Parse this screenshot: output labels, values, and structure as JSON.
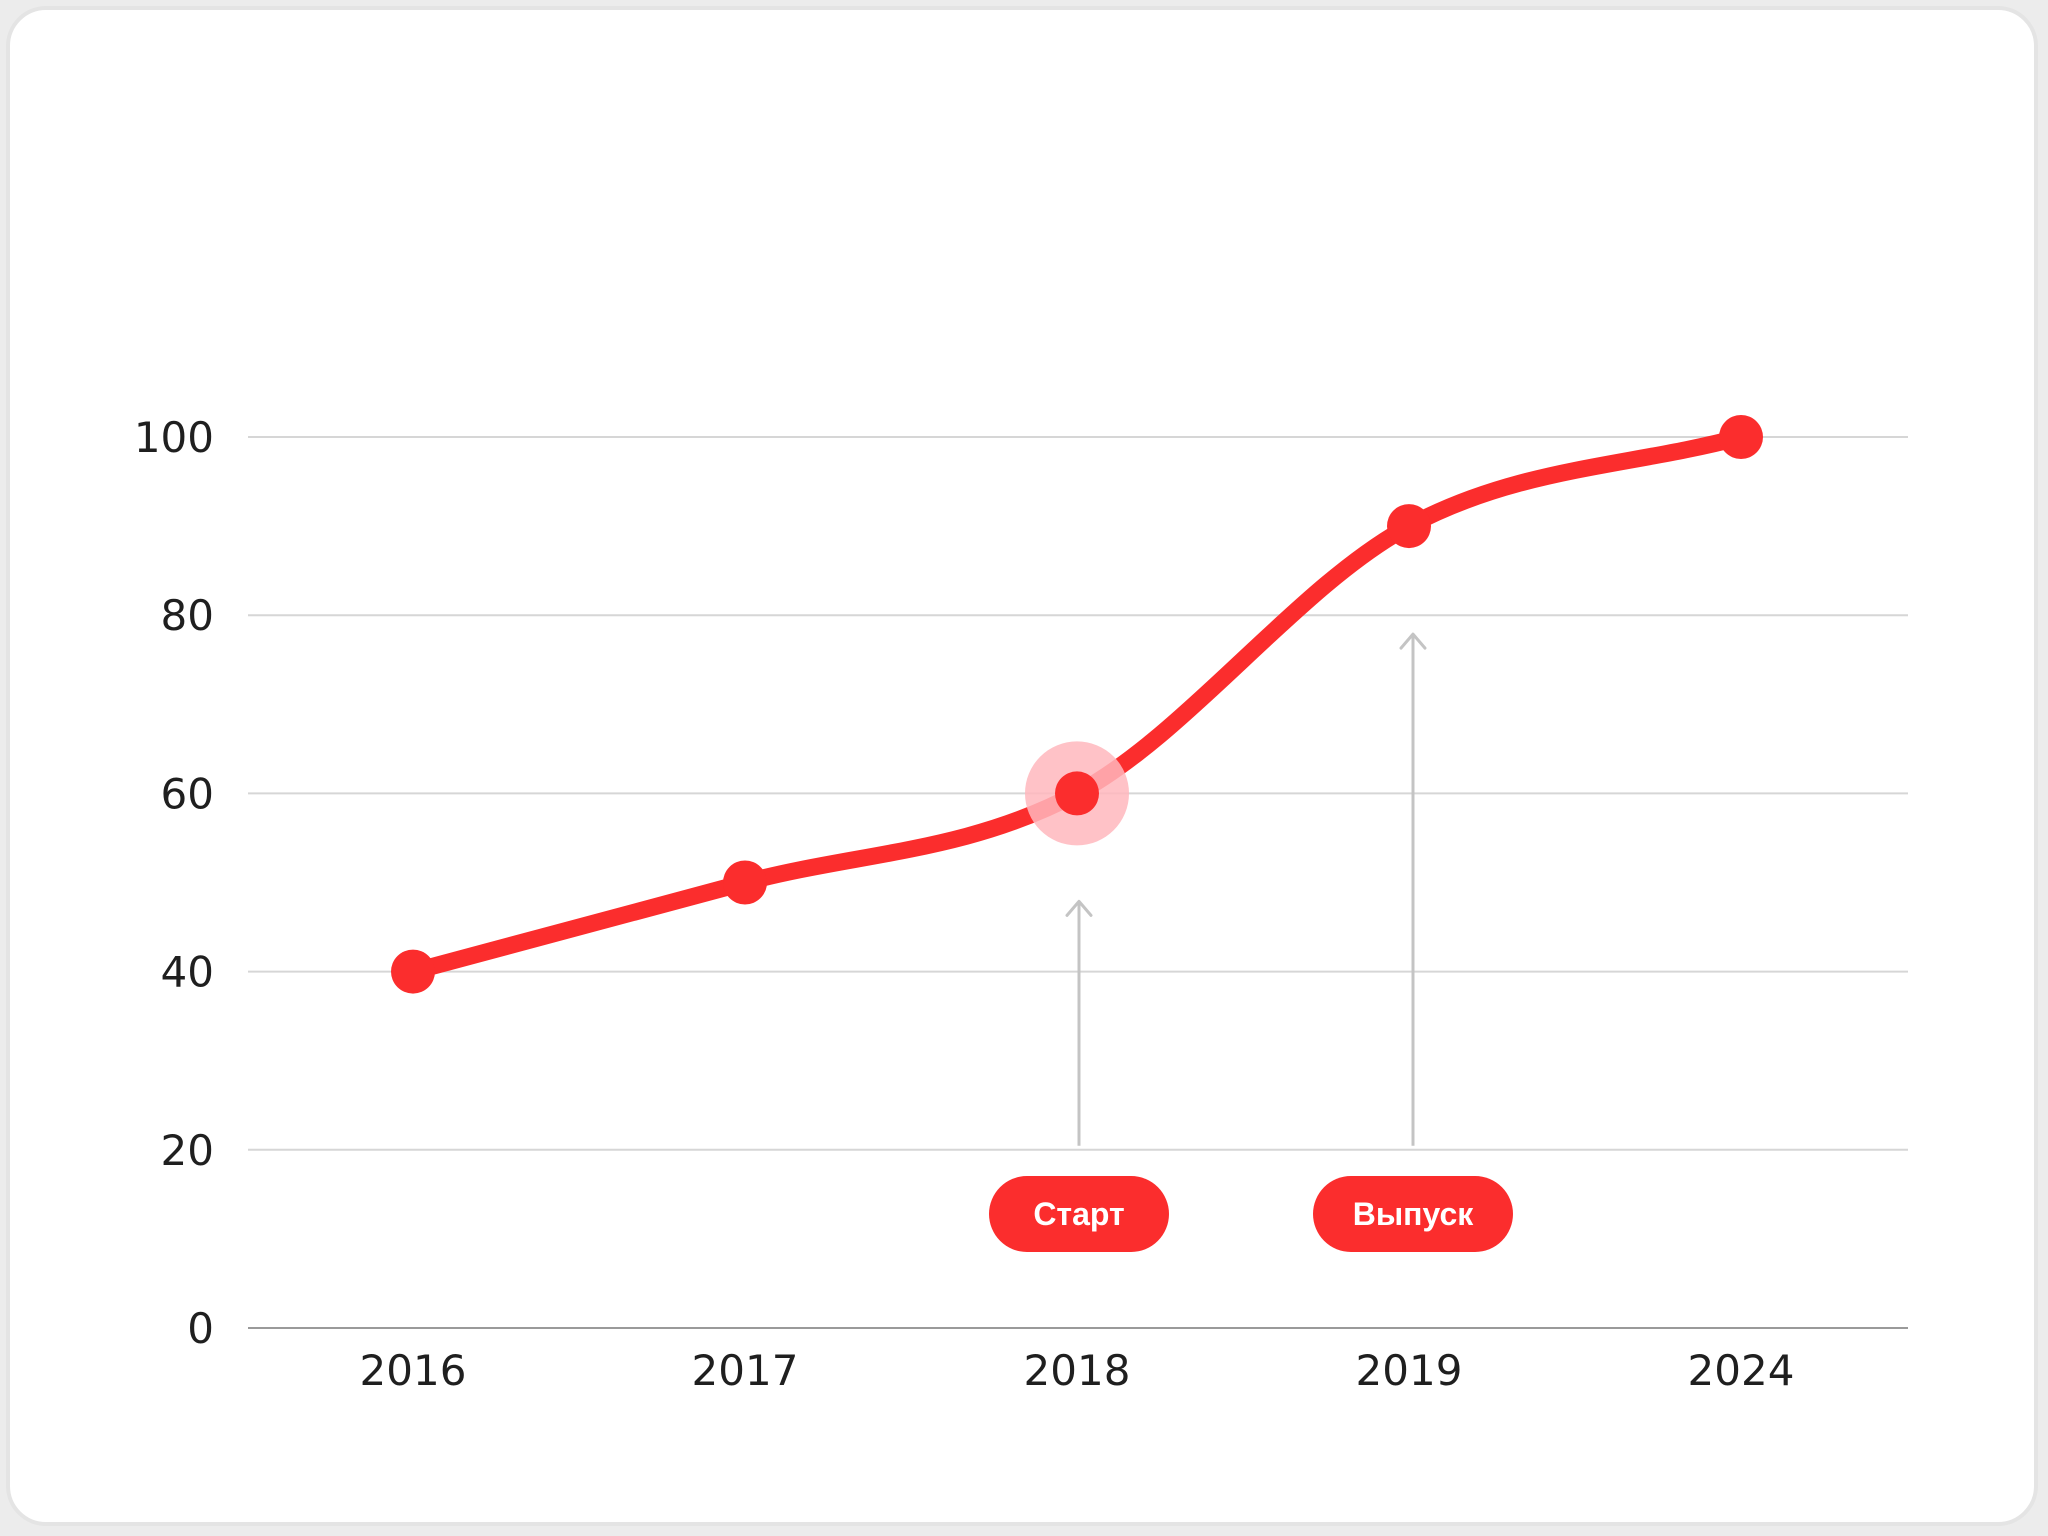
{
  "colors": {
    "line": "#fb2d2d",
    "highlight": "#ffb7bd",
    "grid": "#d6d6d6",
    "axis": "#9a9a9a",
    "arrow": "#c4c4c4",
    "badge": "#fb2d2d"
  },
  "chart_data": {
    "type": "line",
    "categories": [
      "2016",
      "2017",
      "2018",
      "2019",
      "2024"
    ],
    "series": [
      {
        "values": [
          40,
          50,
          60,
          90,
          100
        ]
      }
    ],
    "ylim": [
      0,
      100
    ],
    "yticks": [
      "0",
      "20",
      "40",
      "60",
      "80",
      "100"
    ],
    "grid": true,
    "highlighted_category": "2018",
    "annotations": [
      {
        "label": "Старт",
        "category": "2018"
      },
      {
        "label": "Выпуск",
        "category": "2019"
      }
    ]
  }
}
